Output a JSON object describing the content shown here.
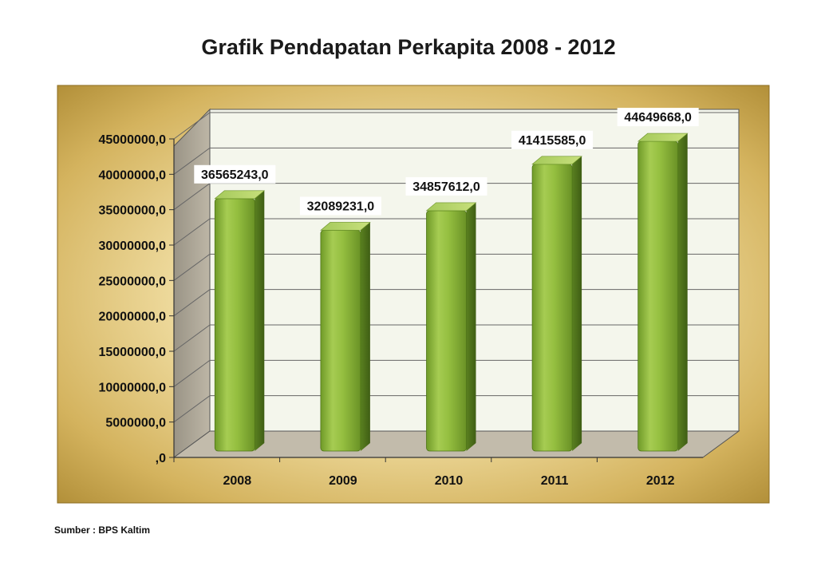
{
  "chart_data": {
    "type": "bar",
    "title": "Grafik Pendapatan Perkapita 2008 - 2012",
    "categories": [
      "2008",
      "2009",
      "2010",
      "2011",
      "2012"
    ],
    "values": [
      36565243.0,
      32089231.0,
      34857612.0,
      41415585.0,
      44649668.0
    ],
    "value_labels": [
      "36565243,0",
      "32089231,0",
      "34857612,0",
      "41415585,0",
      "44649668,0"
    ],
    "ylim": [
      0,
      45000000
    ],
    "y_ticks": [
      0,
      5000000,
      10000000,
      15000000,
      20000000,
      25000000,
      30000000,
      35000000,
      40000000,
      45000000
    ],
    "y_tick_labels": [
      ",0",
      "5000000,0",
      "10000000,0",
      "15000000,0",
      "20000000,0",
      "25000000,0",
      "30000000,0",
      "35000000,0",
      "40000000,0",
      "45000000,0"
    ],
    "xlabel": "",
    "ylabel": "",
    "grid": true,
    "legend": "none",
    "style": "3d-cylinder",
    "colors": {
      "bar": "#8cb43a",
      "bar_dark": "#5f8a1f",
      "bar_light": "#c7e07a",
      "frame_gold": "#c9a84a",
      "wall": "#f3f5ea",
      "floor": "#bfb8a8"
    }
  },
  "source_note": "Sumber : BPS Kaltim"
}
